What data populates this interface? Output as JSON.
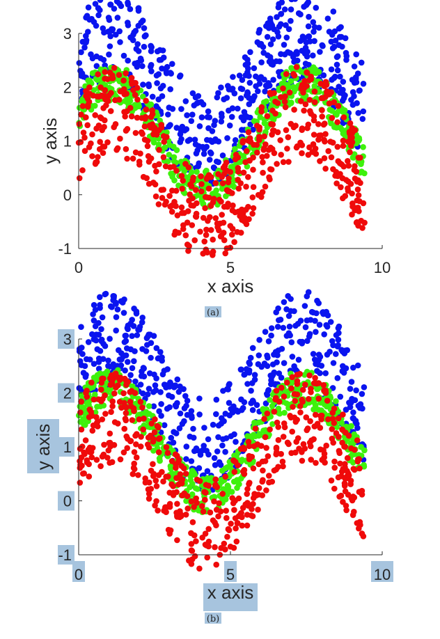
{
  "colors": {
    "blue": "#0a14ef",
    "green": "#3ef10c",
    "red": "#ef0a0a",
    "highlight": "#a7c4de",
    "axis": "#262626"
  },
  "chart_data": [
    {
      "type": "scatter",
      "caption": "(a)",
      "xlabel": "x axis",
      "ylabel": "y axis",
      "xlim": [
        0,
        10
      ],
      "ylim": [
        -1,
        3
      ],
      "xticks": [
        "0",
        "5",
        "10"
      ],
      "yticks": [
        "-1",
        "0",
        "1",
        "2",
        "3"
      ],
      "grid": false,
      "x_range": [
        0,
        9.42
      ],
      "series": [
        {
          "color": "blue",
          "center": "sin(x+0.5)+2",
          "band": 0.9
        },
        {
          "color": "green",
          "center": "sin(x+0.5)+1.1",
          "band": 0.35
        },
        {
          "color": "red",
          "center": "sin(x+0.5)+0.55",
          "band": 0.85
        }
      ],
      "highlight_labels": false
    },
    {
      "type": "scatter",
      "caption": "(b)",
      "xlabel": "x axis",
      "ylabel": "y axis",
      "xlim": [
        0,
        10
      ],
      "ylim": [
        -1,
        3
      ],
      "xticks": [
        "0",
        "5",
        "10"
      ],
      "yticks": [
        "-1",
        "0",
        "1",
        "2",
        "3"
      ],
      "grid": false,
      "x_range": [
        0,
        9.42
      ],
      "series": [
        {
          "color": "blue",
          "center": "sin(x+0.5)+2",
          "band": 0.9
        },
        {
          "color": "green",
          "center": "sin(x+0.5)+1.1",
          "band": 0.35
        },
        {
          "color": "red",
          "center": "sin(x+0.5)+0.55",
          "band": 0.85
        }
      ],
      "highlight_labels": true
    }
  ]
}
